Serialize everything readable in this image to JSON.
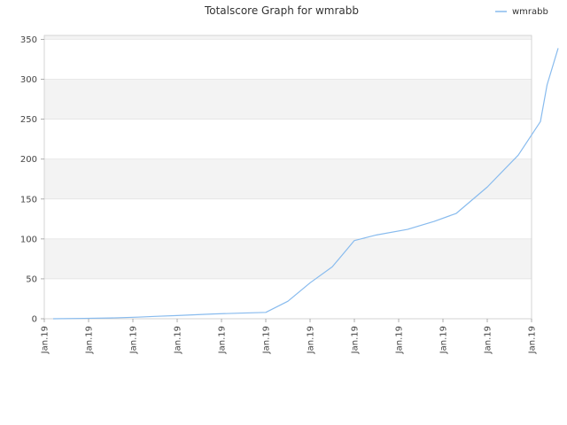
{
  "chart_data": {
    "type": "line",
    "title": "Totalscore Graph for wmrabb",
    "xlabel": "",
    "ylabel": "",
    "ylim": [
      0,
      355
    ],
    "yticks": [
      0,
      50,
      100,
      150,
      200,
      250,
      300,
      350
    ],
    "grid": "alternating horizontal bands",
    "legend_position": "top-right",
    "colors": {
      "series": "#88bbee",
      "band": "#f3f3f3",
      "gridline": "#dddddd",
      "axis": "#cccccc"
    },
    "xticks": [
      "Jan.19",
      "Jan.19",
      "Jan.19",
      "Jan.19",
      "Jan.19",
      "Jan.19",
      "Jan.19",
      "Jan.19",
      "Jan.19",
      "Jan.19",
      "Jan.19",
      "Jan.19"
    ],
    "series": [
      {
        "name": "wmrabb",
        "x": [
          0.2,
          0.9,
          1.5,
          2.1,
          2.5,
          3.0,
          3.4,
          3.8,
          4.4,
          5.0,
          5.5,
          6.0,
          6.5,
          7.0,
          7.5,
          8.2,
          8.8,
          9.3,
          10.0,
          10.7,
          11.2,
          11.35
        ],
        "values": [
          0,
          0.5,
          1,
          2,
          3,
          4,
          5,
          6,
          7,
          8,
          22,
          45,
          65,
          98,
          105,
          112,
          122,
          132,
          165,
          205,
          247,
          293
        ]
      }
    ],
    "series_end": {
      "x": 11.6,
      "value": 339
    }
  }
}
